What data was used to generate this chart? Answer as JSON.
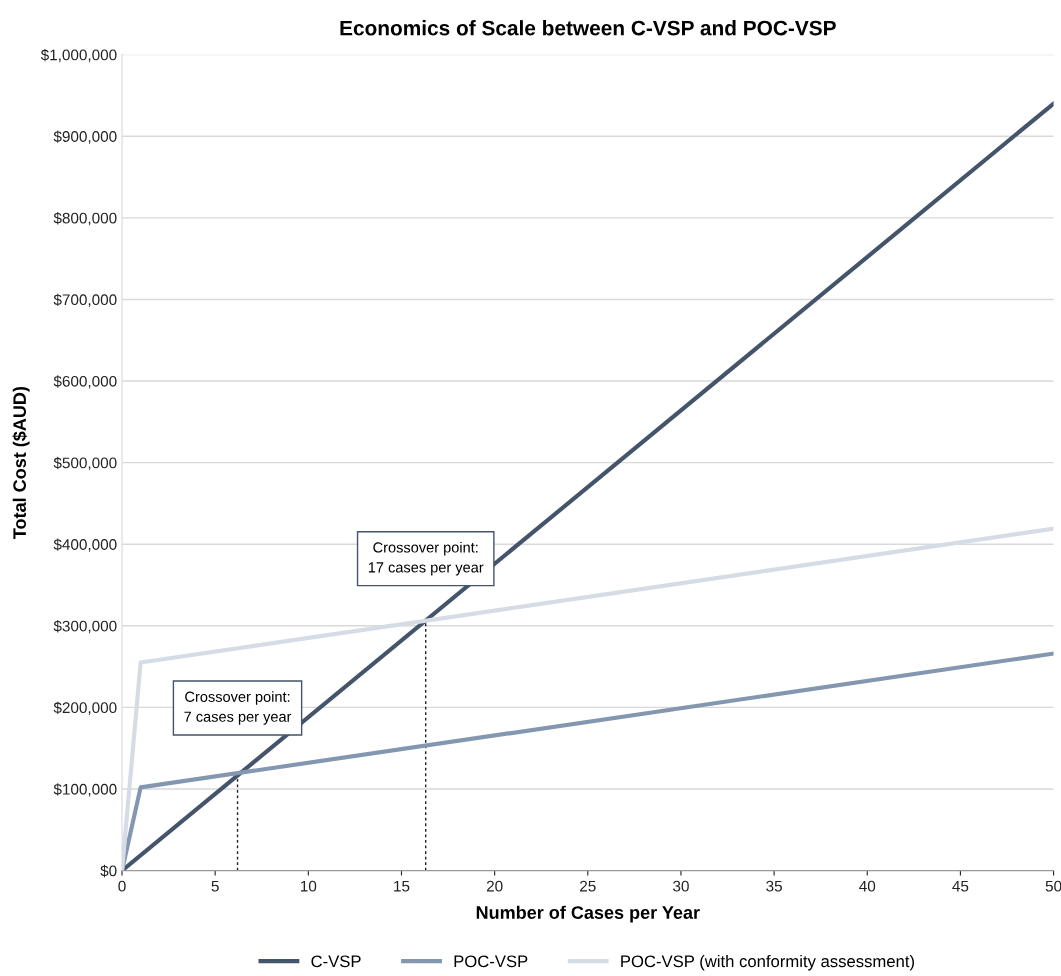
{
  "chart_data": {
    "type": "line",
    "title": "Economics of Scale between C-VSP and POC-VSP",
    "xlabel": "Number of Cases per Year",
    "ylabel": "Total Cost ($AUD)",
    "series": [
      {
        "name": "C-VSP",
        "color": "#44546a",
        "x": [
          0,
          50
        ],
        "values": [
          0,
          940000
        ]
      },
      {
        "name": "POC-VSP",
        "color": "#8497b0",
        "x": [
          0,
          1,
          50
        ],
        "values": [
          0,
          102000,
          266000
        ]
      },
      {
        "name": "POC-VSP (with conformity assessment)",
        "color": "#d6dce5",
        "x": [
          0,
          1,
          50
        ],
        "values": [
          0,
          255000,
          419000
        ]
      },
      {
        "color": "#222222",
        "line_style": "dotted",
        "x": [
          6.2,
          6.2
        ],
        "values": [
          0,
          121000
        ]
      },
      {
        "color": "#222222",
        "line_style": "dotted",
        "x": [
          16.3,
          16.3
        ],
        "values": [
          0,
          304000
        ]
      }
    ],
    "xlim": [
      0,
      50
    ],
    "xticks": [
      0,
      5,
      10,
      15,
      20,
      25,
      30,
      35,
      40,
      45,
      50
    ],
    "ylim": [
      0,
      1000000
    ],
    "yticks": [
      {
        "value": 0,
        "label": "$0"
      },
      {
        "value": 100000,
        "label": "$100,000"
      },
      {
        "value": 200000,
        "label": "$200,000"
      },
      {
        "value": 300000,
        "label": "$300,000"
      },
      {
        "value": 400000,
        "label": "$400,000"
      },
      {
        "value": 500000,
        "label": "$500,000"
      },
      {
        "value": 600000,
        "label": "$600,000"
      },
      {
        "value": 700000,
        "label": "$700,000"
      },
      {
        "value": 800000,
        "label": "$800,000"
      },
      {
        "value": 900000,
        "label": "$900,000"
      },
      {
        "value": 1000000,
        "label": "$1,000,000"
      }
    ],
    "annotations": [
      "Crossover point:\n7 cases per year",
      "Crossover point:\n17 cases per year"
    ],
    "grid": "y",
    "legend": "bottom",
    "marker": "none",
    "line_style": "solid"
  }
}
